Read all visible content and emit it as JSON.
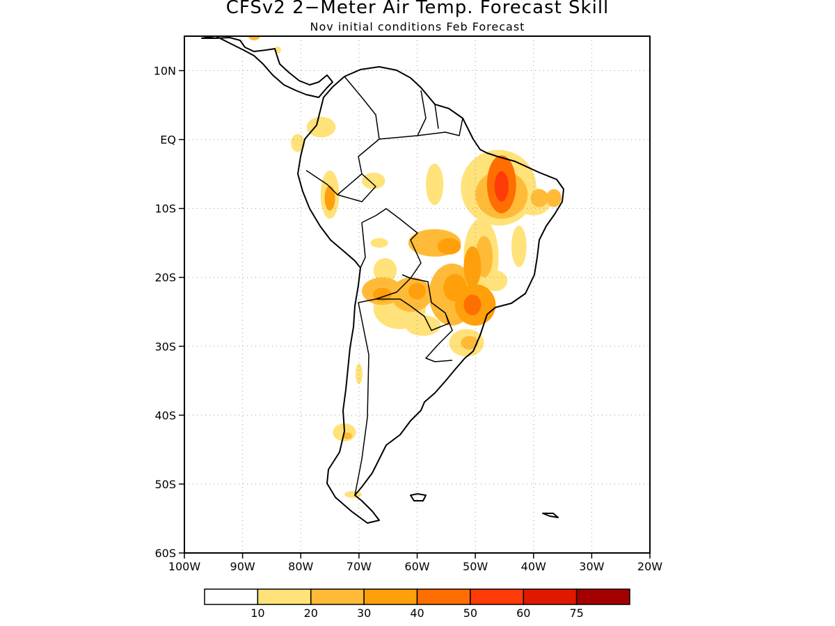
{
  "title": "CFSv2 2−Meter Air Temp. Forecast Skill",
  "subtitle": "Nov initial conditions  Feb Forecast",
  "map": {
    "region": "South America",
    "lon_range": [
      -100,
      -20
    ],
    "lat_range": [
      -60,
      15
    ],
    "lat_ticks": [
      {
        "value": 10,
        "label": "10N"
      },
      {
        "value": 0,
        "label": "EQ"
      },
      {
        "value": -10,
        "label": "10S"
      },
      {
        "value": -20,
        "label": "20S"
      },
      {
        "value": -30,
        "label": "30S"
      },
      {
        "value": -40,
        "label": "40S"
      },
      {
        "value": -50,
        "label": "50S"
      },
      {
        "value": -60,
        "label": "60S"
      }
    ],
    "lon_ticks": [
      {
        "value": -100,
        "label": "100W"
      },
      {
        "value": -90,
        "label": "90W"
      },
      {
        "value": -80,
        "label": "80W"
      },
      {
        "value": -70,
        "label": "70W"
      },
      {
        "value": -60,
        "label": "60W"
      },
      {
        "value": -50,
        "label": "50W"
      },
      {
        "value": -40,
        "label": "40W"
      },
      {
        "value": -30,
        "label": "30W"
      },
      {
        "value": -20,
        "label": "20W"
      }
    ],
    "grid": true
  },
  "colorbar": {
    "colors": [
      "#ffffff",
      "#ffe27a",
      "#ffbb38",
      "#ffa00a",
      "#ff6e00",
      "#ff3b08",
      "#e01800",
      "#a40000"
    ],
    "labels": [
      "10",
      "20",
      "30",
      "40",
      "50",
      "60",
      "75"
    ]
  },
  "skill_regions": [
    {
      "lon": -45.5,
      "lat": -6.5,
      "rx": 2.5,
      "ry": 4.2,
      "level": 4
    },
    {
      "lon": -45.5,
      "lat": -6.8,
      "rx": 1.2,
      "ry": 2.2,
      "level": 5
    },
    {
      "lon": -46.0,
      "lat": -7.0,
      "rx": 6.5,
      "ry": 5.5,
      "level": 1
    },
    {
      "lon": -45.5,
      "lat": -8.0,
      "rx": 4.5,
      "ry": 3.5,
      "level": 2
    },
    {
      "lon": -40.0,
      "lat": -9.0,
      "rx": 3.0,
      "ry": 2.0,
      "level": 1
    },
    {
      "lon": -39.0,
      "lat": -8.5,
      "rx": 1.5,
      "ry": 1.3,
      "level": 2
    },
    {
      "lon": -36.5,
      "lat": -8.5,
      "rx": 1.3,
      "ry": 1.3,
      "level": 2
    },
    {
      "lon": -57.0,
      "lat": -6.5,
      "rx": 1.5,
      "ry": 3.0,
      "level": 1
    },
    {
      "lon": -75.0,
      "lat": -8.0,
      "rx": 1.6,
      "ry": 3.5,
      "level": 1
    },
    {
      "lon": -75.0,
      "lat": -8.5,
      "rx": 0.9,
      "ry": 1.8,
      "level": 3
    },
    {
      "lon": -67.5,
      "lat": -6.0,
      "rx": 2.0,
      "ry": 1.2,
      "level": 1
    },
    {
      "lon": -76.5,
      "lat": 1.8,
      "rx": 2.5,
      "ry": 1.5,
      "level": 1
    },
    {
      "lon": -80.5,
      "lat": -0.5,
      "rx": 1.2,
      "ry": 1.3,
      "level": 1
    },
    {
      "lon": -57.0,
      "lat": -15.0,
      "rx": 4.5,
      "ry": 2.0,
      "level": 2
    },
    {
      "lon": -54.5,
      "lat": -15.5,
      "rx": 2.0,
      "ry": 1.2,
      "level": 3
    },
    {
      "lon": -49.0,
      "lat": -17.0,
      "rx": 3.0,
      "ry": 5.5,
      "level": 1
    },
    {
      "lon": -48.5,
      "lat": -17.0,
      "rx": 1.5,
      "ry": 3.0,
      "level": 2
    },
    {
      "lon": -50.5,
      "lat": -18.5,
      "rx": 1.5,
      "ry": 3.0,
      "level": 3
    },
    {
      "lon": -42.5,
      "lat": -15.5,
      "rx": 1.3,
      "ry": 3.0,
      "level": 1
    },
    {
      "lon": -54.0,
      "lat": -22.5,
      "rx": 4.0,
      "ry": 4.5,
      "level": 2
    },
    {
      "lon": -53.5,
      "lat": -21.5,
      "rx": 2.0,
      "ry": 2.0,
      "level": 3
    },
    {
      "lon": -50.0,
      "lat": -24.0,
      "rx": 3.5,
      "ry": 3.0,
      "level": 3
    },
    {
      "lon": -50.5,
      "lat": -24.0,
      "rx": 1.5,
      "ry": 1.5,
      "level": 4
    },
    {
      "lon": -46.5,
      "lat": -20.5,
      "rx": 2.0,
      "ry": 1.5,
      "level": 1
    },
    {
      "lon": -66.0,
      "lat": -22.0,
      "rx": 3.5,
      "ry": 2.0,
      "level": 2
    },
    {
      "lon": -66.0,
      "lat": -22.5,
      "rx": 1.6,
      "ry": 1.0,
      "level": 3
    },
    {
      "lon": -61.0,
      "lat": -22.5,
      "rx": 3.5,
      "ry": 2.5,
      "level": 2
    },
    {
      "lon": -60.0,
      "lat": -22.0,
      "rx": 1.5,
      "ry": 1.2,
      "level": 3
    },
    {
      "lon": -63.0,
      "lat": -24.5,
      "rx": 4.5,
      "ry": 3.0,
      "level": 1
    },
    {
      "lon": -59.0,
      "lat": -27.0,
      "rx": 3.0,
      "ry": 1.5,
      "level": 1
    },
    {
      "lon": -65.5,
      "lat": -19.0,
      "rx": 2.0,
      "ry": 1.8,
      "level": 1
    },
    {
      "lon": -66.5,
      "lat": -15.0,
      "rx": 1.5,
      "ry": 0.7,
      "level": 1
    },
    {
      "lon": -51.5,
      "lat": -29.5,
      "rx": 3.0,
      "ry": 2.0,
      "level": 1
    },
    {
      "lon": -51.0,
      "lat": -29.5,
      "rx": 1.5,
      "ry": 1.0,
      "level": 2
    },
    {
      "lon": -70.0,
      "lat": -34.0,
      "rx": 0.6,
      "ry": 1.5,
      "level": 1
    },
    {
      "lon": -72.5,
      "lat": -42.5,
      "rx": 2.0,
      "ry": 1.3,
      "level": 1
    },
    {
      "lon": -72.0,
      "lat": -43.0,
      "rx": 0.8,
      "ry": 0.5,
      "level": 2
    },
    {
      "lon": -71.0,
      "lat": -51.5,
      "rx": 1.5,
      "ry": 0.5,
      "level": 1
    },
    {
      "lon": -88.0,
      "lat": 15.0,
      "rx": 1.0,
      "ry": 0.6,
      "level": 2
    },
    {
      "lon": -84.0,
      "lat": 13.0,
      "rx": 0.6,
      "ry": 0.5,
      "level": 1
    }
  ]
}
